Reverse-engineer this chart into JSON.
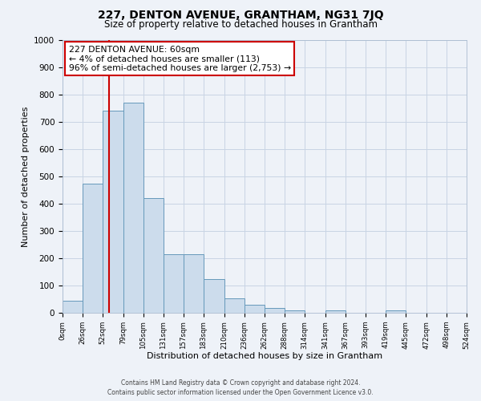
{
  "title": "227, DENTON AVENUE, GRANTHAM, NG31 7JQ",
  "subtitle": "Size of property relative to detached houses in Grantham",
  "xlabel": "Distribution of detached houses by size in Grantham",
  "ylabel": "Number of detached properties",
  "bin_edges": [
    0,
    26,
    52,
    79,
    105,
    131,
    157,
    183,
    210,
    236,
    262,
    288,
    314,
    341,
    367,
    393,
    419,
    445,
    472,
    498,
    524
  ],
  "bar_heights": [
    45,
    475,
    740,
    770,
    420,
    215,
    215,
    125,
    52,
    30,
    18,
    10,
    0,
    8,
    0,
    0,
    10,
    0,
    0,
    0
  ],
  "bar_color": "#ccdcec",
  "bar_edgecolor": "#6699bb",
  "property_line_x": 60,
  "property_line_color": "#cc0000",
  "ylim": [
    0,
    1000
  ],
  "yticks": [
    0,
    100,
    200,
    300,
    400,
    500,
    600,
    700,
    800,
    900,
    1000
  ],
  "xtick_labels": [
    "0sqm",
    "26sqm",
    "52sqm",
    "79sqm",
    "105sqm",
    "131sqm",
    "157sqm",
    "183sqm",
    "210sqm",
    "236sqm",
    "262sqm",
    "288sqm",
    "314sqm",
    "341sqm",
    "367sqm",
    "393sqm",
    "419sqm",
    "445sqm",
    "472sqm",
    "498sqm",
    "524sqm"
  ],
  "annotation_title": "227 DENTON AVENUE: 60sqm",
  "annotation_line1": "← 4% of detached houses are smaller (113)",
  "annotation_line2": "96% of semi-detached houses are larger (2,753) →",
  "annotation_box_color": "#cc0000",
  "footer_line1": "Contains HM Land Registry data © Crown copyright and database right 2024.",
  "footer_line2": "Contains public sector information licensed under the Open Government Licence v3.0.",
  "grid_color": "#c8d4e4",
  "background_color": "#eef2f8"
}
